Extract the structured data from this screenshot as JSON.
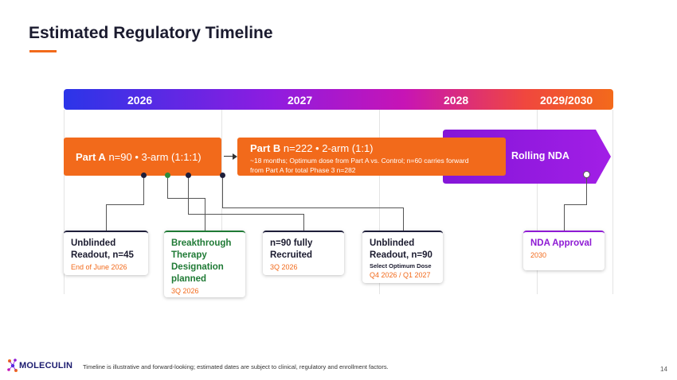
{
  "page": {
    "title": "Estimated Regulatory Timeline",
    "page_number": "14"
  },
  "years": [
    "2026",
    "2027",
    "2028",
    "2029/2030"
  ],
  "part_a": {
    "label": "Part A",
    "detail": "n=90 • 3-arm (1:1:1)"
  },
  "part_b": {
    "label": "Part B",
    "detail": "n=222 • 2-arm (1:1)",
    "note": "~18 months; Optimum dose from Part A vs. Control; n=60 carries forward from Part A for total Phase 3 n=282"
  },
  "rolling_nda": {
    "label": "Rolling NDA"
  },
  "milestones": [
    {
      "heading": "Unblinded Readout, n=45",
      "subtext": "",
      "date": "End of June 2026"
    },
    {
      "heading": "Breakthrough Therapy Designation planned",
      "subtext": "",
      "date": "3Q 2026"
    },
    {
      "heading": "n=90 fully Recruited",
      "subtext": "",
      "date": "3Q 2026"
    },
    {
      "heading": "Unblinded Readout, n=90",
      "subtext": "Select Optimum Dose",
      "date": "Q4 2026 / Q1 2027"
    },
    {
      "heading": "NDA Approval",
      "subtext": "",
      "date": "2030"
    }
  ],
  "footer": {
    "logo": "MOLECULIN",
    "disclaimer": "Timeline is illustrative and forward-looking; estimated dates are subject to clinical, regulatory and enrollment factors."
  },
  "colors": {
    "orange": "#f26a1b",
    "purple": "#8e1ad4",
    "green": "#1f7a35",
    "navy": "#1b1b2f"
  },
  "icons": [
    "molecule-logo-icon"
  ]
}
